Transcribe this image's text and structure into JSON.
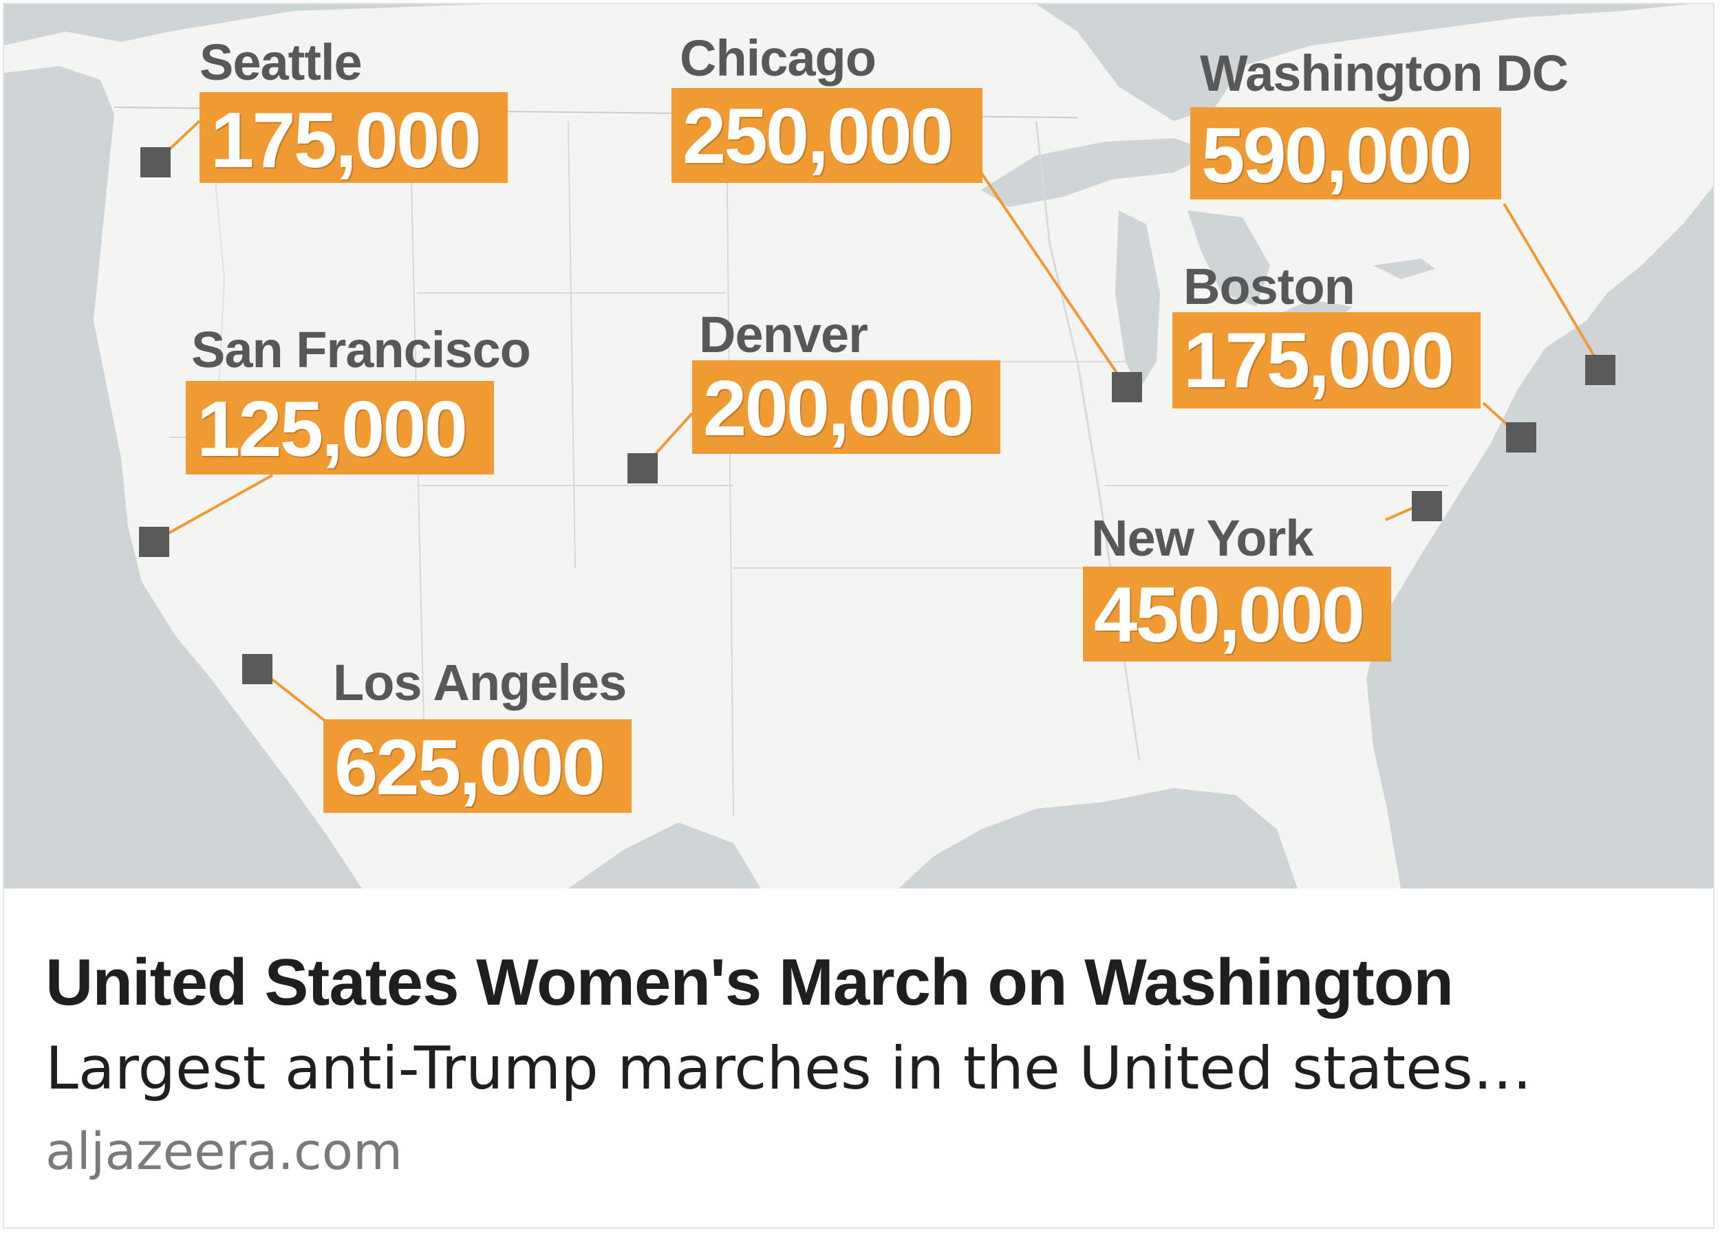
{
  "map": {
    "cities": [
      {
        "id": "seattle",
        "name": "Seattle",
        "count": "175,000"
      },
      {
        "id": "chicago",
        "name": "Chicago",
        "count": "250,000"
      },
      {
        "id": "washington-dc",
        "name": "Washington DC",
        "count": "590,000"
      },
      {
        "id": "boston",
        "name": "Boston",
        "count": "175,000"
      },
      {
        "id": "san-francisco",
        "name": "San Francisco",
        "count": "125,000"
      },
      {
        "id": "denver",
        "name": "Denver",
        "count": "200,000"
      },
      {
        "id": "new-york",
        "name": "New York",
        "count": "450,000"
      },
      {
        "id": "los-angeles",
        "name": "Los Angeles",
        "count": "625,000"
      }
    ],
    "colors": {
      "land": "#f4f5f3",
      "water": "#cfd4d6",
      "count_box": "#ef9a33",
      "marker": "#5a5a5a",
      "leader_line": "#ef9a33"
    }
  },
  "caption": {
    "headline": "United States Women's March on Washington",
    "subline": "Largest anti-Trump marches in the United states…",
    "source": "aljazeera.com"
  }
}
